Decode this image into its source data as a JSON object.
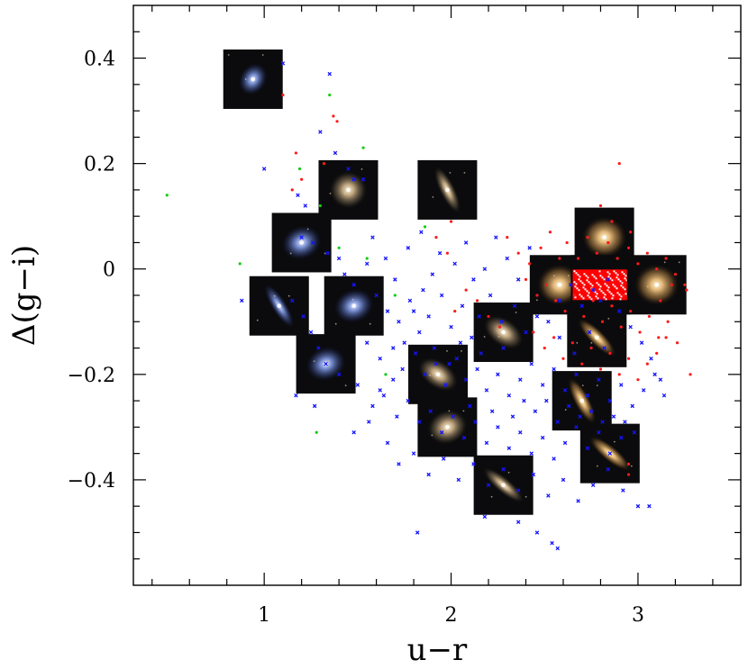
{
  "chart_data": {
    "type": "scatter",
    "title": "",
    "xlabel": "u−r",
    "ylabel": "Δ(g−i)",
    "xlim": [
      0.3,
      3.55
    ],
    "ylim": [
      -0.6,
      0.5
    ],
    "x_ticks": [
      {
        "value": 1,
        "label": "1"
      },
      {
        "value": 2,
        "label": "2"
      },
      {
        "value": 3,
        "label": "3"
      }
    ],
    "y_ticks": [
      {
        "value": 0.4,
        "label": "0.4"
      },
      {
        "value": 0.2,
        "label": "0.2"
      },
      {
        "value": 0,
        "label": "0"
      },
      {
        "value": -0.2,
        "label": "−0.2"
      },
      {
        "value": -0.4,
        "label": "−0.4"
      }
    ],
    "grid": false,
    "legend": "none",
    "series": [
      {
        "marker": "x",
        "color": "#1414ff",
        "points": [
          [
            1.1,
            0.39
          ],
          [
            1.35,
            0.37
          ],
          [
            1.3,
            0.26
          ],
          [
            1.38,
            0.22
          ],
          [
            1.0,
            0.19
          ],
          [
            1.45,
            0.19
          ],
          [
            1.48,
            0.17
          ],
          [
            1.53,
            0.17
          ],
          [
            1.18,
            0.14
          ],
          [
            1.22,
            0.12
          ],
          [
            1.2,
            0.06
          ],
          [
            1.26,
            0.05
          ],
          [
            1.34,
            0.03
          ],
          [
            1.4,
            0.02
          ],
          [
            1.55,
            0.01
          ],
          [
            1.43,
            -0.01
          ],
          [
            1.48,
            -0.03
          ],
          [
            1.58,
            0.06
          ],
          [
            1.65,
            0.02
          ],
          [
            1.7,
            -0.02
          ],
          [
            1.77,
            0.04
          ],
          [
            1.84,
            0.07
          ],
          [
            1.9,
            -0.01
          ],
          [
            1.94,
            0.03
          ],
          [
            2.02,
            0.01
          ],
          [
            2.08,
            0.05
          ],
          [
            2.12,
            -0.02
          ],
          [
            2.18,
            0.0
          ],
          [
            2.24,
            0.06
          ],
          [
            2.3,
            0.02
          ],
          [
            2.36,
            -0.02
          ],
          [
            2.42,
            0.04
          ],
          [
            1.6,
            -0.05
          ],
          [
            1.66,
            -0.08
          ],
          [
            1.72,
            -0.1
          ],
          [
            1.78,
            -0.06
          ],
          [
            1.83,
            -0.12
          ],
          [
            1.88,
            -0.09
          ],
          [
            1.95,
            -0.05
          ],
          [
            2.0,
            -0.11
          ],
          [
            2.06,
            -0.07
          ],
          [
            2.11,
            -0.13
          ],
          [
            2.15,
            -0.09
          ],
          [
            2.21,
            -0.05
          ],
          [
            2.27,
            -0.1
          ],
          [
            2.34,
            -0.07
          ],
          [
            2.4,
            -0.12
          ],
          [
            2.46,
            -0.09
          ],
          [
            1.55,
            -0.14
          ],
          [
            1.62,
            -0.17
          ],
          [
            1.69,
            -0.15
          ],
          [
            1.74,
            -0.19
          ],
          [
            1.81,
            -0.16
          ],
          [
            1.86,
            -0.2
          ],
          [
            1.92,
            -0.18
          ],
          [
            1.97,
            -0.22
          ],
          [
            2.03,
            -0.17
          ],
          [
            2.08,
            -0.21
          ],
          [
            2.14,
            -0.19
          ],
          [
            2.19,
            -0.23
          ],
          [
            2.25,
            -0.2
          ],
          [
            2.31,
            -0.24
          ],
          [
            2.37,
            -0.21
          ],
          [
            2.43,
            -0.18
          ],
          [
            2.49,
            -0.22
          ],
          [
            2.55,
            -0.19
          ],
          [
            2.61,
            -0.23
          ],
          [
            2.67,
            -0.2
          ],
          [
            2.73,
            -0.24
          ],
          [
            2.79,
            -0.21
          ],
          [
            2.85,
            -0.25
          ],
          [
            2.91,
            -0.22
          ],
          [
            2.97,
            -0.26
          ],
          [
            3.03,
            -0.23
          ],
          [
            3.09,
            -0.2
          ],
          [
            3.14,
            -0.24
          ],
          [
            1.5,
            -0.22
          ],
          [
            1.58,
            -0.26
          ],
          [
            1.64,
            -0.24
          ],
          [
            1.71,
            -0.28
          ],
          [
            1.77,
            -0.25
          ],
          [
            1.83,
            -0.29
          ],
          [
            1.89,
            -0.27
          ],
          [
            1.95,
            -0.31
          ],
          [
            2.01,
            -0.28
          ],
          [
            2.07,
            -0.32
          ],
          [
            2.13,
            -0.29
          ],
          [
            2.19,
            -0.33
          ],
          [
            2.25,
            -0.3
          ],
          [
            2.31,
            -0.34
          ],
          [
            2.37,
            -0.31
          ],
          [
            2.43,
            -0.35
          ],
          [
            2.49,
            -0.32
          ],
          [
            2.55,
            -0.36
          ],
          [
            2.61,
            -0.33
          ],
          [
            2.67,
            -0.3
          ],
          [
            2.73,
            -0.34
          ],
          [
            2.79,
            -0.31
          ],
          [
            2.85,
            -0.35
          ],
          [
            2.91,
            -0.32
          ],
          [
            1.66,
            -0.33
          ],
          [
            1.72,
            -0.37
          ],
          [
            1.8,
            -0.35
          ],
          [
            1.88,
            -0.39
          ],
          [
            1.96,
            -0.36
          ],
          [
            2.04,
            -0.4
          ],
          [
            2.12,
            -0.37
          ],
          [
            2.2,
            -0.41
          ],
          [
            2.28,
            -0.38
          ],
          [
            2.36,
            -0.42
          ],
          [
            2.44,
            -0.39
          ],
          [
            2.52,
            -0.43
          ],
          [
            2.6,
            -0.4
          ],
          [
            2.68,
            -0.44
          ],
          [
            2.76,
            -0.41
          ],
          [
            2.84,
            -0.38
          ],
          [
            2.92,
            -0.42
          ],
          [
            3.0,
            -0.45
          ],
          [
            3.06,
            -0.45
          ],
          [
            2.18,
            -0.47
          ],
          [
            2.36,
            -0.48
          ],
          [
            2.46,
            -0.5
          ],
          [
            2.54,
            -0.52
          ],
          [
            1.82,
            -0.5
          ],
          [
            2.57,
            -0.53
          ],
          [
            1.4,
            -0.2
          ],
          [
            1.33,
            -0.18
          ],
          [
            1.29,
            -0.15
          ],
          [
            1.25,
            -0.12
          ],
          [
            1.21,
            -0.09
          ],
          [
            1.15,
            -0.06
          ],
          [
            0.88,
            -0.06
          ],
          [
            1.27,
            -0.26
          ],
          [
            1.17,
            -0.24
          ],
          [
            1.48,
            -0.31
          ],
          [
            1.56,
            -0.29
          ],
          [
            2.9,
            -0.08
          ],
          [
            2.96,
            -0.11
          ],
          [
            3.02,
            -0.14
          ],
          [
            3.07,
            -0.17
          ],
          [
            3.12,
            -0.21
          ],
          [
            2.82,
            -0.15
          ],
          [
            2.74,
            -0.12
          ],
          [
            2.66,
            -0.16
          ],
          [
            2.58,
            -0.13
          ],
          [
            2.52,
            -0.1
          ],
          [
            2.58,
            -0.06
          ],
          [
            2.64,
            -0.03
          ],
          [
            2.7,
            -0.07
          ],
          [
            2.76,
            -0.04
          ],
          [
            2.84,
            -0.02
          ],
          [
            2.8,
            -0.06
          ],
          [
            1.62,
            -0.23
          ],
          [
            1.69,
            -0.21
          ],
          [
            1.75,
            -0.14
          ],
          [
            1.8,
            -0.08
          ],
          [
            1.85,
            -0.04
          ],
          [
            1.91,
            -0.15
          ],
          [
            1.99,
            -0.18
          ],
          [
            2.05,
            -0.14
          ],
          [
            2.1,
            -0.26
          ],
          [
            2.16,
            -0.16
          ],
          [
            2.22,
            -0.27
          ],
          [
            2.28,
            -0.15
          ],
          [
            2.33,
            -0.28
          ],
          [
            2.39,
            -0.25
          ],
          [
            2.45,
            -0.27
          ],
          [
            2.51,
            -0.25
          ],
          [
            2.57,
            -0.29
          ],
          [
            2.63,
            -0.26
          ],
          [
            2.69,
            -0.28
          ],
          [
            2.75,
            -0.27
          ],
          [
            2.81,
            -0.29
          ],
          [
            2.87,
            -0.28
          ],
          [
            2.93,
            -0.29
          ],
          [
            2.98,
            -0.31
          ]
        ]
      },
      {
        "marker": "dot",
        "color": "#ff1a1a",
        "points": [
          [
            1.1,
            0.33
          ],
          [
            1.37,
            0.29
          ],
          [
            1.39,
            0.28
          ],
          [
            1.17,
            0.22
          ],
          [
            1.32,
            0.2
          ],
          [
            1.2,
            0.17
          ],
          [
            1.15,
            0.15
          ],
          [
            2.9,
            0.2
          ],
          [
            2.8,
            0.12
          ],
          [
            2.86,
            0.09
          ],
          [
            2.96,
            0.07
          ],
          [
            2.3,
            0.06
          ],
          [
            2.36,
            0.03
          ],
          [
            2.42,
            0.01
          ],
          [
            2.48,
            0.04
          ],
          [
            2.53,
            0.07
          ],
          [
            2.58,
            0.02
          ],
          [
            2.62,
            0.05
          ],
          [
            2.68,
            0.02
          ],
          [
            2.73,
            0.06
          ],
          [
            2.78,
            0.03
          ],
          [
            2.84,
            0.05
          ],
          [
            2.89,
            0.02
          ],
          [
            2.95,
            0.04
          ],
          [
            3.0,
            0.01
          ],
          [
            3.05,
            0.03
          ],
          [
            3.1,
            0.0
          ],
          [
            3.15,
            0.02
          ],
          [
            3.2,
            -0.01
          ],
          [
            3.25,
            -0.03
          ],
          [
            2.4,
            -0.02
          ],
          [
            2.46,
            -0.05
          ],
          [
            2.51,
            -0.03
          ],
          [
            2.56,
            -0.06
          ],
          [
            2.61,
            -0.08
          ],
          [
            2.66,
            -0.05
          ],
          [
            2.71,
            -0.09
          ],
          [
            2.76,
            -0.06
          ],
          [
            2.81,
            -0.1
          ],
          [
            2.86,
            -0.07
          ],
          [
            2.91,
            -0.11
          ],
          [
            2.96,
            -0.08
          ],
          [
            3.01,
            -0.12
          ],
          [
            3.06,
            -0.09
          ],
          [
            3.11,
            -0.13
          ],
          [
            3.16,
            -0.1
          ],
          [
            3.21,
            -0.14
          ],
          [
            3.26,
            -0.04
          ],
          [
            2.44,
            -0.12
          ],
          [
            2.5,
            -0.15
          ],
          [
            2.55,
            -0.13
          ],
          [
            2.6,
            -0.17
          ],
          [
            2.65,
            -0.14
          ],
          [
            2.7,
            -0.18
          ],
          [
            2.75,
            -0.15
          ],
          [
            2.8,
            -0.19
          ],
          [
            2.85,
            -0.16
          ],
          [
            2.9,
            -0.2
          ],
          [
            2.95,
            -0.17
          ],
          [
            3.0,
            -0.21
          ],
          [
            3.05,
            -0.18
          ],
          [
            3.1,
            -0.16
          ],
          [
            3.15,
            -0.13
          ],
          [
            3.28,
            -0.2
          ],
          [
            2.95,
            -0.37
          ],
          [
            2.95,
            -0.39
          ],
          [
            2.02,
            -0.08
          ],
          [
            2.08,
            -0.04
          ],
          [
            2.14,
            -0.06
          ],
          [
            2.2,
            -0.09
          ],
          [
            2.26,
            -0.11
          ],
          [
            1.92,
            0.06
          ],
          [
            2.0,
            0.09
          ],
          [
            1.98,
            0.03
          ],
          [
            2.88,
            -0.02
          ],
          [
            2.92,
            -0.05
          ],
          [
            3.12,
            -0.06
          ],
          [
            3.18,
            -0.03
          ]
        ]
      },
      {
        "marker": "dot",
        "color": "#15cc15",
        "points": [
          [
            0.48,
            0.14
          ],
          [
            0.87,
            0.01
          ],
          [
            1.19,
            0.19
          ],
          [
            1.35,
            0.33
          ],
          [
            1.53,
            0.23
          ],
          [
            1.28,
            -0.31
          ],
          [
            1.55,
            0.02
          ],
          [
            1.7,
            -0.05
          ],
          [
            1.86,
            0.08
          ],
          [
            1.65,
            -0.2
          ],
          [
            1.4,
            0.04
          ],
          [
            1.3,
            0.12
          ]
        ]
      }
    ],
    "galaxy_images": [
      {
        "x": 0.94,
        "y": 0.36,
        "hue": "blue",
        "shape": "compact"
      },
      {
        "x": 1.45,
        "y": 0.15,
        "hue": "tan",
        "shape": "face-on"
      },
      {
        "x": 1.98,
        "y": 0.15,
        "hue": "tan",
        "shape": "edge-on"
      },
      {
        "x": 1.2,
        "y": 0.05,
        "hue": "blue",
        "shape": "spiral"
      },
      {
        "x": 1.08,
        "y": -0.07,
        "hue": "blue",
        "shape": "edge-on"
      },
      {
        "x": 1.48,
        "y": -0.07,
        "hue": "blue",
        "shape": "spiral"
      },
      {
        "x": 1.33,
        "y": -0.18,
        "hue": "blue",
        "shape": "spiral"
      },
      {
        "x": 1.93,
        "y": -0.2,
        "hue": "tan",
        "shape": "tilted"
      },
      {
        "x": 2.28,
        "y": -0.12,
        "hue": "tan",
        "shape": "tilted"
      },
      {
        "x": 1.98,
        "y": -0.3,
        "hue": "tan",
        "shape": "spiral"
      },
      {
        "x": 2.28,
        "y": -0.41,
        "hue": "tan",
        "shape": "edge-on"
      },
      {
        "x": 2.58,
        "y": -0.03,
        "hue": "gold",
        "shape": "elliptical"
      },
      {
        "x": 2.82,
        "y": 0.06,
        "hue": "gold",
        "shape": "elliptical"
      },
      {
        "x": 2.8,
        "y": -0.03,
        "hue": "noise",
        "shape": "noise"
      },
      {
        "x": 3.1,
        "y": -0.03,
        "hue": "gold",
        "shape": "elliptical"
      },
      {
        "x": 2.78,
        "y": -0.13,
        "hue": "gold",
        "shape": "edge-on"
      },
      {
        "x": 2.7,
        "y": -0.25,
        "hue": "gold",
        "shape": "edge-on"
      },
      {
        "x": 2.85,
        "y": -0.35,
        "hue": "gold",
        "shape": "edge-on"
      }
    ]
  }
}
